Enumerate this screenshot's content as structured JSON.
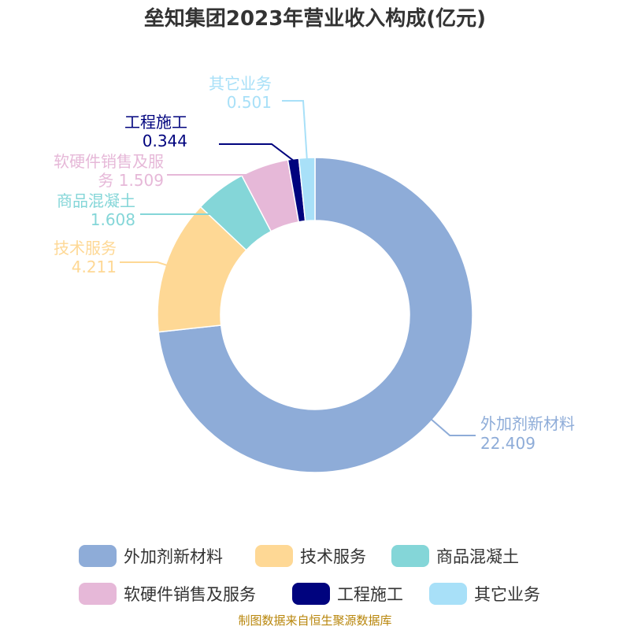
{
  "title": "垒知集团2023年营业收入构成(亿元)",
  "source": "制图数据来自恒生聚源数据库",
  "chart_data": {
    "type": "pie",
    "variant": "donut",
    "title": "垒知集团2023年营业收入构成(亿元)",
    "unit": "亿元",
    "legend_position": "bottom",
    "series": [
      {
        "name": "外加剂新材料",
        "value": 22.409,
        "color": "#8eacd8"
      },
      {
        "name": "技术服务",
        "value": 4.211,
        "color": "#fed895"
      },
      {
        "name": "商品混凝土",
        "value": 1.608,
        "color": "#84d6d8"
      },
      {
        "name": "软硬件销售及服务",
        "value": 1.509,
        "color": "#e6b8d8"
      },
      {
        "name": "工程施工",
        "value": 0.344,
        "color": "#00037e"
      },
      {
        "name": "其它业务",
        "value": 0.501,
        "color": "#a8e0f8"
      }
    ]
  }
}
